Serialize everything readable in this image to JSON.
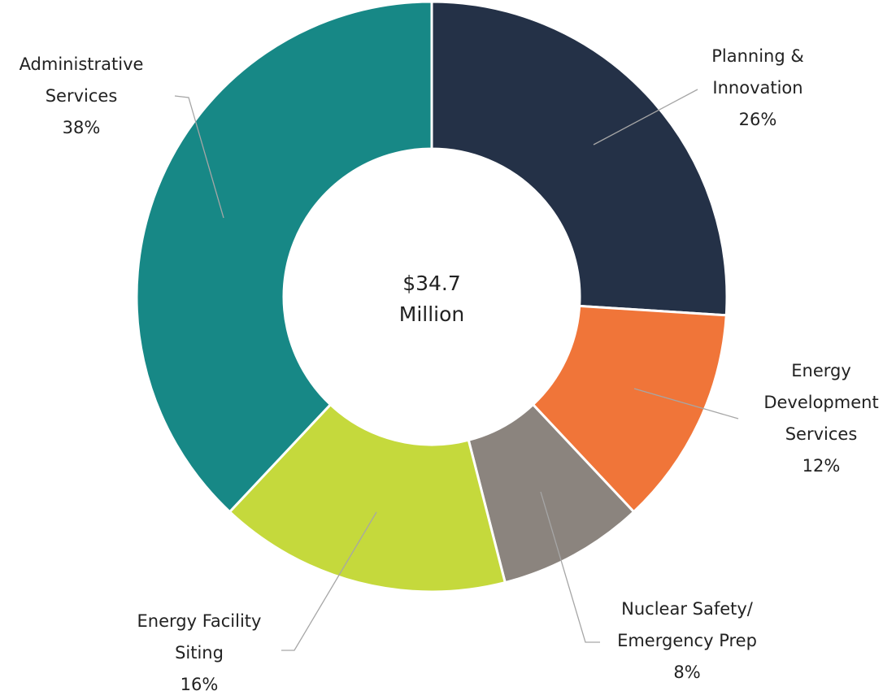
{
  "chart_data": {
    "type": "donut",
    "center_label": "$34.7 Million",
    "categories": [
      "Planning & Innovation",
      "Energy Development Services",
      "Nuclear Safety/ Emergency Prep",
      "Energy Facility Siting",
      "Administrative Services"
    ],
    "values": [
      26,
      12,
      8,
      16,
      38
    ],
    "value_labels": [
      "26%",
      "12%",
      "8%",
      "16%",
      "38%"
    ],
    "colors": [
      "#243147",
      "#f07539",
      "#8b847e",
      "#c5d93c",
      "#178886"
    ]
  }
}
